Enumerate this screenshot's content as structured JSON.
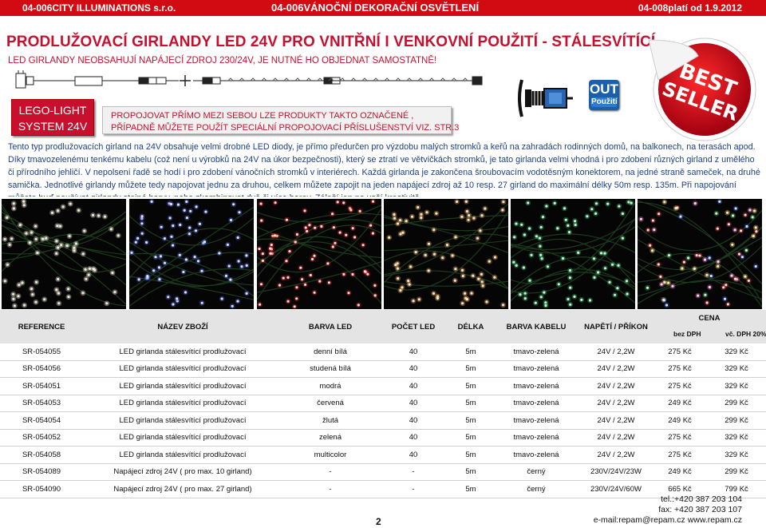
{
  "header": {
    "left": "04-006CITY ILLUMINATIONS s.r.o.",
    "center": "04-006VÁNOČNÍ DEKORAČNÍ OSVĚTLENÍ",
    "right": "04-008platí od 1.9.2012"
  },
  "title": "PRODLUŽOVACÍ  GIRLANDY  LED 24V  PRO VNITŘNÍ I VENKOVNÍ POUŽITÍ - STÁLESVÍTÍCÍ",
  "subtitle": "LED GIRLANDY NEOBSAHUJÍ NAPÁJECÍ ZDROJ 230/24V, JE NUTNÉ HO OBJEDNAT SAMOSTATNĚ!",
  "lego_box": {
    "line1": "LEGO-LIGHT",
    "line2": "SYSTEM 24V"
  },
  "note": {
    "line1": "PROPOJOVAT  PŘÍMO MEZI SEBOU LZE  PRODUKTY  TAKTO OZNAČENÉ ,",
    "line2": "PŘÍPADNĚ MŮŽETE POUŽÍT  SPECIÁLNÍ PROPOJOVACÍ PŘÍSLUŠENSTVÍ VIZ. STR.3"
  },
  "badge": {
    "out": "OUT",
    "pouziti": "Použití"
  },
  "bestseller": {
    "line1": "BEST",
    "line2": "SELLER"
  },
  "description": {
    "p1": "Tento typ prodlužovacích girland na 24V obsahuje velmi drobné LED diody, je přímo předurčen pro výzdobu malých  stromků a keřů na zahradách rodinných domů, na balkonech, na terasách apod. Díky tmavozelenému tenkému kabelu (což není u výrobků na 24V na úkor bezpečnosti), který se ztratí ve větvičkách stromků, je tato girlanda velmi vhodná i pro zdobení různých girland z umělého či přírodního jehličí. V nepolsení řadě se hodí i pro zdobení vánočních stromků v interiérech.",
    "p2": "Každá girlanda je zakončena šroubovacím vodotěsným konektorem, na jedné straně sameček, na druhé samička. Jednotlivé girlandy můžete tedy napojovat jednu za druhou, celkem můžete zapojit na jeden napájecí zdroj až 10 resp. 27 girland do maximální délky  50m resp. 135m. Při napojování můžete buď používat girlandy stejné barvy, nebo zkombinovat dvě či více barev. Záleží jen na vaší kreativitě."
  },
  "table": {
    "headers": {
      "ref": "REFERENCE",
      "name": "NÁZEV ZBOŽÍ",
      "led_color": "BARVA LED",
      "led_count": "POČET LED",
      "length": "DÉLKA",
      "cable": "BARVA KABELU",
      "power": "NAPĚTÍ / PŘÍKON",
      "price": "CENA",
      "price_ex": "bez DPH",
      "price_inc": "vč. DPH 20%"
    },
    "rows": [
      {
        "ref": "SR-054055",
        "name": "LED girlanda stálesvítící prodlužovací",
        "led_color": "denní  bílá",
        "led_count": "40",
        "length": "5m",
        "cable": "tmavo-zelená",
        "power": "24V / 2,2W",
        "price_ex": "275 Kč",
        "price_inc": "329 Kč"
      },
      {
        "ref": "SR-054056",
        "name": "LED girlanda stálesvítící prodlužovací",
        "led_color": "studená bílá",
        "led_count": "40",
        "length": "5m",
        "cable": "tmavo-zelená",
        "power": "24V / 2,2W",
        "price_ex": "275 Kč",
        "price_inc": "329 Kč"
      },
      {
        "ref": "SR-054051",
        "name": "LED girlanda stálesvítící prodlužovací",
        "led_color": "modrá",
        "led_count": "40",
        "length": "5m",
        "cable": "tmavo-zelená",
        "power": "24V / 2,2W",
        "price_ex": "275 Kč",
        "price_inc": "329 Kč"
      },
      {
        "ref": "SR-054053",
        "name": "LED girlanda stálesvítící prodlužovací",
        "led_color": "červená",
        "led_count": "40",
        "length": "5m",
        "cable": "tmavo-zelená",
        "power": "24V / 2,2W",
        "price_ex": "249 Kč",
        "price_inc": "299 Kč"
      },
      {
        "ref": "SR-054054",
        "name": "LED girlanda stálesvítící prodlužovací",
        "led_color": "žlutá",
        "led_count": "40",
        "length": "5m",
        "cable": "tmavo-zelená",
        "power": "24V / 2,2W",
        "price_ex": "249 Kč",
        "price_inc": "299 Kč"
      },
      {
        "ref": "SR-054052",
        "name": "LED girlanda stálesvítící prodlužovací",
        "led_color": "zelená",
        "led_count": "40",
        "length": "5m",
        "cable": "tmavo-zelená",
        "power": "24V / 2,2W",
        "price_ex": "275 Kč",
        "price_inc": "329 Kč"
      },
      {
        "ref": "SR-054058",
        "name": "LED girlanda stálesvítící prodlužovací",
        "led_color": "multicolor",
        "led_count": "40",
        "length": "5m",
        "cable": "tmavo-zelená",
        "power": "24V / 2,2W",
        "price_ex": "275 Kč",
        "price_inc": "329 Kč"
      },
      {
        "ref": "SR-054089",
        "name": "Napájecí zdroj 24V ( pro max. 10 girland)",
        "led_color": "-",
        "led_count": "-",
        "length": "5m",
        "cable": "černý",
        "power": "230V/24V/23W",
        "price_ex": "249 Kč",
        "price_inc": "299 Kč"
      },
      {
        "ref": "SR-054090",
        "name": "Napájecí zdroj 24V ( pro max. 27 girland)",
        "led_color": "-",
        "led_count": "-",
        "length": "5m",
        "cable": "černý",
        "power": "230V/24V/60W",
        "price_ex": "665 Kč",
        "price_inc": "799 Kč"
      }
    ]
  },
  "page_number": "2",
  "contact": {
    "tel": "tel.:+420 387 203 104",
    "fax": "fax: +420 387 203 107",
    "email": "e-mail:repam@repam.cz  www.repam.cz"
  },
  "photo_colors": [
    "#fff4d0",
    "#4d6bff",
    "#ff2020",
    "#ffb347",
    "#22dd66",
    "#ff3355"
  ],
  "colors": {
    "brand_red": "#d20a11",
    "accent_red": "#c8102e",
    "text_blue": "#1d3f8c"
  }
}
